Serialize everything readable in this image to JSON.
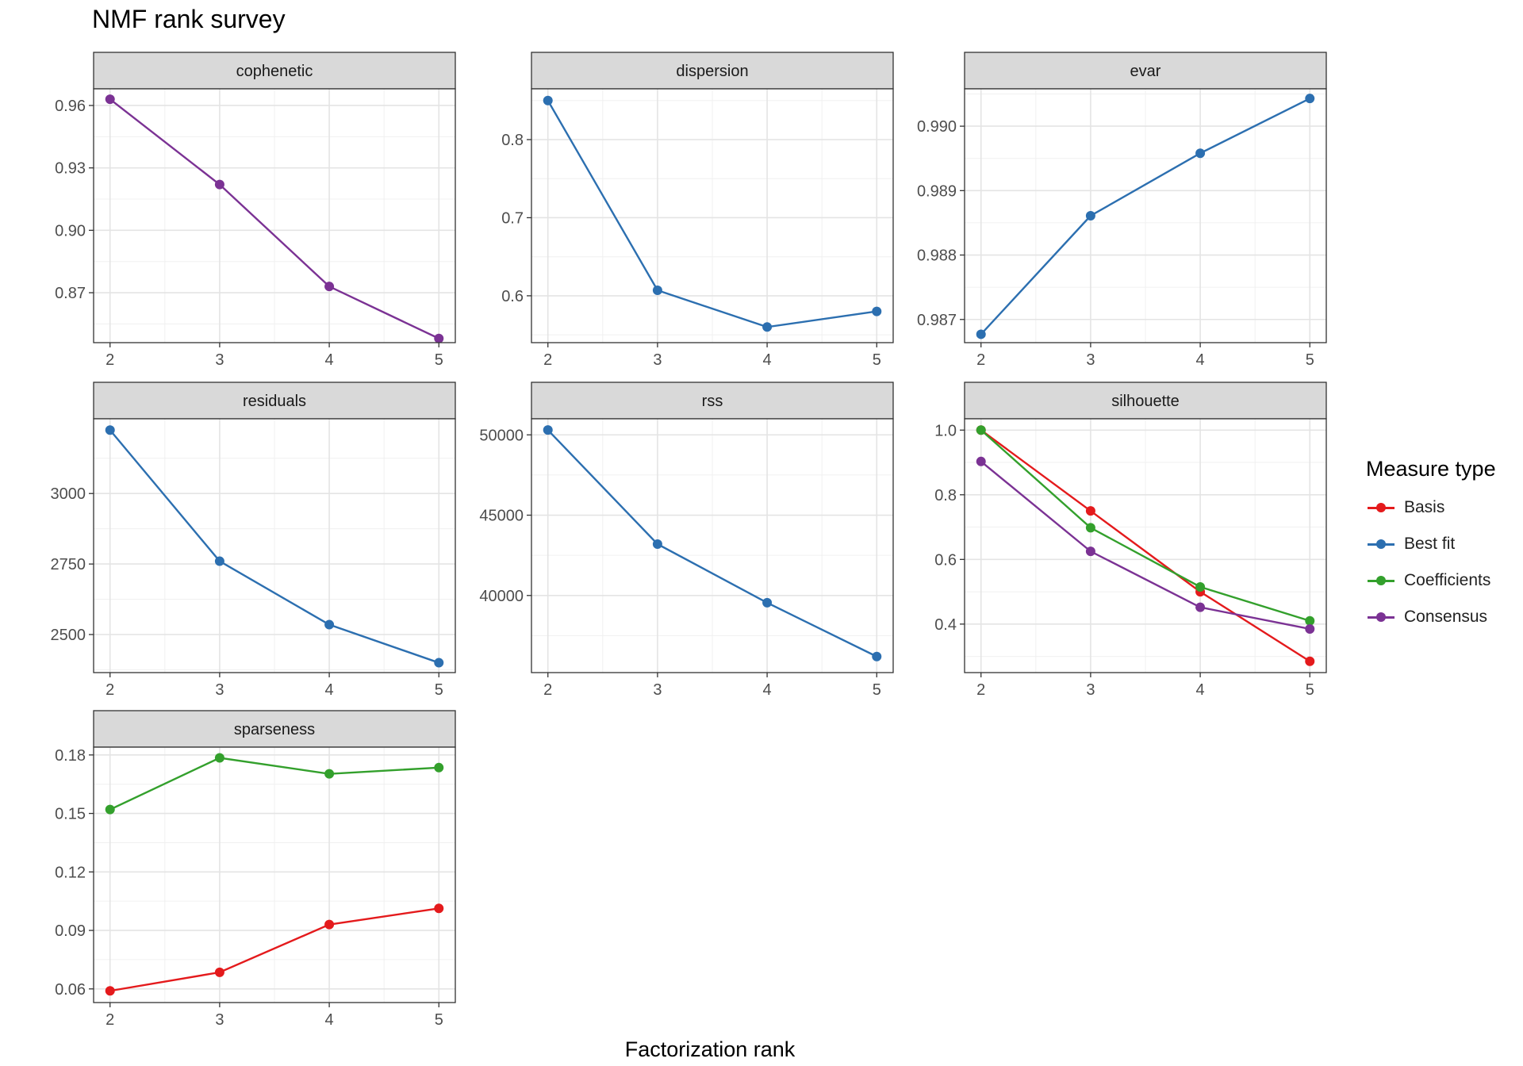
{
  "title": "NMF rank survey",
  "xlabel": "Factorization rank",
  "colors": {
    "Basis": "#e41a1c",
    "Best fit": "#2c6fb0",
    "Coefficients": "#33a02c",
    "Consensus": "#7b3294"
  },
  "legend": {
    "title": "Measure type",
    "items": [
      "Basis",
      "Best fit",
      "Coefficients",
      "Consensus"
    ]
  },
  "chart_data": [
    {
      "type": "line",
      "strip": "cophenetic",
      "x": [
        2,
        3,
        4,
        5
      ],
      "ylim": [
        0.846,
        0.968
      ],
      "yticks": [
        "0.87",
        "0.90",
        "0.93",
        "0.96"
      ],
      "series": [
        {
          "name": "Consensus",
          "values": [
            0.963,
            0.922,
            0.873,
            0.848
          ]
        }
      ]
    },
    {
      "type": "line",
      "strip": "dispersion",
      "x": [
        2,
        3,
        4,
        5
      ],
      "ylim": [
        0.54,
        0.865
      ],
      "yticks": [
        "0.6",
        "0.7",
        "0.8"
      ],
      "series": [
        {
          "name": "Best fit",
          "values": [
            0.85,
            0.607,
            0.56,
            0.58
          ]
        }
      ]
    },
    {
      "type": "line",
      "strip": "evar",
      "x": [
        2,
        3,
        4,
        5
      ],
      "ylim": [
        0.98664,
        0.99058
      ],
      "yticks": [
        "0.987",
        "0.988",
        "0.989",
        "0.990"
      ],
      "series": [
        {
          "name": "Best fit",
          "values": [
            0.98677,
            0.98861,
            0.98958,
            0.99043
          ]
        }
      ]
    },
    {
      "type": "line",
      "strip": "residuals",
      "x": [
        2,
        3,
        4,
        5
      ],
      "ylim": [
        2365,
        3265
      ],
      "yticks": [
        "2500",
        "2750",
        "3000"
      ],
      "series": [
        {
          "name": "Best fit",
          "values": [
            3225,
            2760,
            2535,
            2400
          ]
        }
      ]
    },
    {
      "type": "line",
      "strip": "rss",
      "x": [
        2,
        3,
        4,
        5
      ],
      "ylim": [
        35200,
        51000
      ],
      "yticks": [
        "40000",
        "45000",
        "50000"
      ],
      "series": [
        {
          "name": "Best fit",
          "values": [
            50300,
            43200,
            39550,
            36200
          ]
        }
      ]
    },
    {
      "type": "line",
      "strip": "silhouette",
      "x": [
        2,
        3,
        4,
        5
      ],
      "ylim": [
        0.25,
        1.035
      ],
      "yticks": [
        "0.4",
        "0.6",
        "0.8",
        "1.0"
      ],
      "series": [
        {
          "name": "Basis",
          "values": [
            1.0,
            0.75,
            0.5,
            0.285
          ]
        },
        {
          "name": "Coefficients",
          "values": [
            1.0,
            0.698,
            0.515,
            0.41
          ]
        },
        {
          "name": "Consensus",
          "values": [
            0.903,
            0.625,
            0.452,
            0.385
          ]
        }
      ]
    },
    {
      "type": "line",
      "strip": "sparseness",
      "x": [
        2,
        3,
        4,
        5
      ],
      "ylim": [
        0.053,
        0.184
      ],
      "yticks": [
        "0.06",
        "0.09",
        "0.12",
        "0.15",
        "0.18"
      ],
      "series": [
        {
          "name": "Basis",
          "values": [
            0.059,
            0.0685,
            0.093,
            0.1013
          ]
        },
        {
          "name": "Coefficients",
          "values": [
            0.152,
            0.1785,
            0.1703,
            0.1735
          ]
        }
      ]
    }
  ]
}
